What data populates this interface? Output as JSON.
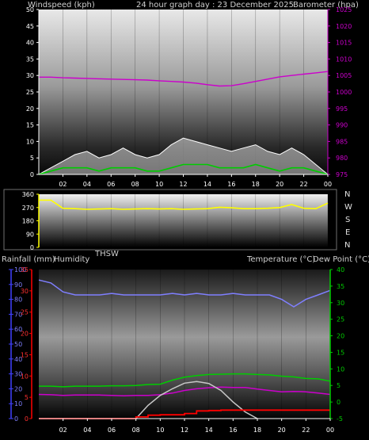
{
  "header": {
    "left_label": "Windspeed (kph)",
    "center_label": "24 hour graph day : 23 December 2025",
    "right_label": "Barometer (hpa)"
  },
  "middle": {
    "compass": [
      "N",
      "W",
      "S",
      "E",
      "N"
    ]
  },
  "bottom_header": {
    "left_label": "Rainfall (mm)",
    "left_label2": "Humidity",
    "thsw_label": "THSW",
    "right_label": "Temperature (°C)",
    "right_label2": "Dew Point (°C)"
  },
  "x_ticks": [
    "02",
    "04",
    "06",
    "08",
    "10",
    "12",
    "14",
    "16",
    "18",
    "20",
    "22",
    "00"
  ],
  "colors": {
    "wind_avg": "#00cc00",
    "wind_gust": "#ffffff",
    "barometer": "#cc00cc",
    "direction": "#ffff00",
    "humidity": "#7f7fff",
    "temperature": "#00cc00",
    "dewpoint": "#cc00cc",
    "thsw": "#c8c8c8",
    "rainfall": "#ff0000",
    "axis_blue": "#4040ff"
  },
  "chart_data": [
    {
      "type": "line",
      "panel": "wind-barometer",
      "title": "24 hour graph day : 23 December 2025",
      "ylabel_left": "Windspeed (kph)",
      "ylabel_right": "Barometer (hpa)",
      "y_left_ticks": [
        "0",
        "5",
        "10",
        "15",
        "20",
        "25",
        "30",
        "35",
        "40",
        "45",
        "50"
      ],
      "y_right_ticks": [
        "975",
        "980",
        "985",
        "990",
        "995",
        "1000",
        "1005",
        "1010",
        "1015",
        "1020",
        "1025"
      ],
      "ylim_left": [
        0,
        50
      ],
      "ylim_right": [
        975,
        1025
      ],
      "x_hours": [
        0,
        1,
        2,
        3,
        4,
        5,
        6,
        7,
        8,
        9,
        10,
        11,
        12,
        13,
        14,
        15,
        16,
        17,
        18,
        19,
        20,
        21,
        22,
        23,
        24
      ],
      "series": [
        {
          "name": "Barometer",
          "axis": "right",
          "values": [
            1004.5,
            1004.5,
            1004.3,
            1004.2,
            1004.1,
            1004.0,
            1003.9,
            1003.8,
            1003.7,
            1003.6,
            1003.4,
            1003.2,
            1003.0,
            1002.7,
            1002.2,
            1001.8,
            1001.9,
            1002.5,
            1003.2,
            1003.9,
            1004.6,
            1005.0,
            1005.4,
            1005.8,
            1006.2
          ]
        },
        {
          "name": "Wind gust",
          "axis": "left",
          "values": [
            0,
            2,
            4,
            6,
            7,
            5,
            6,
            8,
            6,
            5,
            6,
            9,
            11,
            10,
            9,
            8,
            7,
            8,
            9,
            7,
            6,
            8,
            6,
            3,
            0
          ]
        },
        {
          "name": "Wind average",
          "axis": "left",
          "values": [
            0,
            1,
            2,
            2,
            2,
            1,
            2,
            2,
            2,
            1,
            1,
            2,
            3,
            3,
            3,
            2,
            2,
            2,
            3,
            2,
            1,
            2,
            2,
            1,
            0
          ]
        }
      ]
    },
    {
      "type": "line",
      "panel": "wind-direction",
      "y_ticks": [
        "0",
        "90",
        "180",
        "270",
        "360"
      ],
      "ylim": [
        0,
        360
      ],
      "x_hours": [
        0,
        1,
        2,
        3,
        4,
        5,
        6,
        7,
        8,
        9,
        10,
        11,
        12,
        13,
        14,
        15,
        16,
        17,
        18,
        19,
        20,
        21,
        22,
        23,
        24
      ],
      "series": [
        {
          "name": "Wind direction",
          "values": [
            320,
            320,
            265,
            262,
            258,
            260,
            262,
            258,
            260,
            262,
            260,
            262,
            258,
            260,
            262,
            272,
            268,
            262,
            262,
            265,
            270,
            290,
            265,
            262,
            300
          ]
        }
      ]
    },
    {
      "type": "line",
      "panel": "rain-humidity-temperature",
      "y_left_ticks": [
        "0",
        "10",
        "20",
        "30",
        "40",
        "50",
        "60",
        "70",
        "80",
        "90",
        "100"
      ],
      "y_rain_ticks": [
        "0",
        "5",
        "10",
        "15",
        "20",
        "25",
        "30",
        "35"
      ],
      "y_right_ticks": [
        "-5",
        "0",
        "5",
        "10",
        "15",
        "20",
        "25",
        "30",
        "35",
        "40"
      ],
      "ylim_humidity": [
        0,
        100
      ],
      "ylim_rain": [
        0,
        35
      ],
      "ylim_temperature": [
        -5,
        40
      ],
      "x_hours": [
        0,
        1,
        2,
        3,
        4,
        5,
        6,
        7,
        8,
        9,
        10,
        11,
        12,
        13,
        14,
        15,
        16,
        17,
        18,
        19,
        20,
        21,
        22,
        23,
        24
      ],
      "series": [
        {
          "name": "Humidity",
          "axis": "humidity",
          "values": [
            93,
            91,
            85,
            83,
            83,
            83,
            84,
            83,
            83,
            83,
            83,
            84,
            83,
            84,
            83,
            83,
            84,
            83,
            83,
            83,
            80,
            75,
            80,
            83,
            86
          ]
        },
        {
          "name": "Temperature",
          "axis": "temperature",
          "values": [
            4.8,
            4.8,
            4.6,
            4.8,
            4.8,
            4.8,
            4.9,
            4.9,
            5.0,
            5.3,
            5.4,
            6.6,
            7.5,
            8.0,
            8.3,
            8.4,
            8.5,
            8.5,
            8.3,
            8.2,
            7.8,
            7.6,
            7.1,
            7.0,
            6.3
          ]
        },
        {
          "name": "Dew Point",
          "axis": "temperature",
          "values": [
            2.3,
            2.2,
            2.0,
            2.1,
            2.1,
            2.1,
            2.0,
            1.9,
            2.0,
            2.0,
            2.2,
            2.7,
            3.5,
            4.0,
            4.3,
            4.5,
            4.4,
            4.4,
            3.9,
            3.5,
            3.1,
            3.2,
            3.1,
            2.7,
            2.3
          ]
        },
        {
          "name": "THSW",
          "axis": "temperature",
          "values": [
            null,
            null,
            null,
            null,
            null,
            null,
            null,
            null,
            -5,
            -1,
            2,
            4,
            5.7,
            6.2,
            5.6,
            3.5,
            0,
            -3,
            -5,
            null,
            null,
            null,
            null,
            null,
            null
          ]
        },
        {
          "name": "Rainfall",
          "axis": "rain",
          "values": [
            0,
            0,
            0,
            0,
            0,
            0,
            0,
            0,
            0.4,
            0.8,
            0.9,
            0.9,
            1.2,
            1.8,
            1.9,
            2.0,
            2.0,
            2.0,
            2.0,
            2.0,
            2.0,
            2.0,
            2.0,
            2.0,
            2.0
          ]
        }
      ]
    }
  ]
}
